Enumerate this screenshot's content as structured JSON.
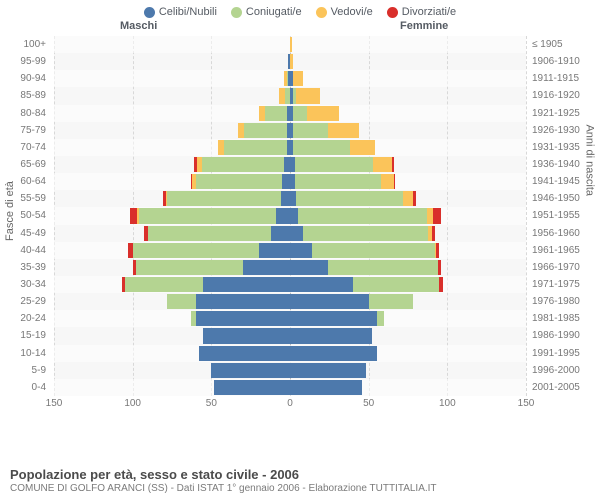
{
  "legend": [
    {
      "label": "Celibi/Nubili",
      "color": "#4d79ac"
    },
    {
      "label": "Coniugati/e",
      "color": "#b4d491"
    },
    {
      "label": "Vedovi/e",
      "color": "#fbc45a"
    },
    {
      "label": "Divorziati/e",
      "color": "#d92f2b"
    }
  ],
  "columns": {
    "left": "Maschi",
    "right": "Femmine"
  },
  "axes": {
    "left_title": "Fasce di età",
    "right_title": "Anni di nascita",
    "xmax": 150,
    "xticks": [
      150,
      100,
      50,
      0,
      50,
      100,
      150
    ],
    "grid_vals": [
      150,
      100,
      50,
      0,
      50,
      100,
      150
    ],
    "background": "#f7f7f7",
    "grid_color": "#d8d8d8"
  },
  "age_labels": [
    "100+",
    "95-99",
    "90-94",
    "85-89",
    "80-84",
    "75-79",
    "70-74",
    "65-69",
    "60-64",
    "55-59",
    "50-54",
    "45-49",
    "40-44",
    "35-39",
    "30-34",
    "25-29",
    "20-24",
    "15-19",
    "10-14",
    "5-9",
    "0-4"
  ],
  "year_labels": [
    "≤ 1905",
    "1906-1910",
    "1911-1915",
    "1916-1920",
    "1921-1925",
    "1926-1930",
    "1931-1935",
    "1936-1940",
    "1941-1945",
    "1946-1950",
    "1951-1955",
    "1956-1960",
    "1961-1965",
    "1966-1970",
    "1971-1975",
    "1976-1980",
    "1981-1985",
    "1986-1990",
    "1991-1995",
    "1996-2000",
    "2001-2005"
  ],
  "data": {
    "male": [
      {
        "c": 0,
        "m": 0,
        "w": 0,
        "d": 0
      },
      {
        "c": 1,
        "m": 0,
        "w": 0,
        "d": 0
      },
      {
        "c": 1,
        "m": 1,
        "w": 2,
        "d": 0
      },
      {
        "c": 0,
        "m": 3,
        "w": 4,
        "d": 0
      },
      {
        "c": 2,
        "m": 14,
        "w": 4,
        "d": 0
      },
      {
        "c": 2,
        "m": 27,
        "w": 4,
        "d": 0
      },
      {
        "c": 2,
        "m": 40,
        "w": 4,
        "d": 0
      },
      {
        "c": 4,
        "m": 52,
        "w": 3,
        "d": 2
      },
      {
        "c": 5,
        "m": 55,
        "w": 2,
        "d": 1
      },
      {
        "c": 6,
        "m": 72,
        "w": 1,
        "d": 2
      },
      {
        "c": 9,
        "m": 87,
        "w": 1,
        "d": 5
      },
      {
        "c": 12,
        "m": 78,
        "w": 0,
        "d": 3
      },
      {
        "c": 20,
        "m": 80,
        "w": 0,
        "d": 3
      },
      {
        "c": 30,
        "m": 68,
        "w": 0,
        "d": 2
      },
      {
        "c": 55,
        "m": 50,
        "w": 0,
        "d": 2
      },
      {
        "c": 60,
        "m": 18,
        "w": 0,
        "d": 0
      },
      {
        "c": 60,
        "m": 3,
        "w": 0,
        "d": 0
      },
      {
        "c": 55,
        "m": 0,
        "w": 0,
        "d": 0
      },
      {
        "c": 58,
        "m": 0,
        "w": 0,
        "d": 0
      },
      {
        "c": 50,
        "m": 0,
        "w": 0,
        "d": 0
      },
      {
        "c": 48,
        "m": 0,
        "w": 0,
        "d": 0
      }
    ],
    "female": [
      {
        "c": 0,
        "m": 0,
        "w": 1,
        "d": 0
      },
      {
        "c": 0,
        "m": 0,
        "w": 2,
        "d": 0
      },
      {
        "c": 2,
        "m": 0,
        "w": 6,
        "d": 0
      },
      {
        "c": 2,
        "m": 2,
        "w": 15,
        "d": 0
      },
      {
        "c": 2,
        "m": 9,
        "w": 20,
        "d": 0
      },
      {
        "c": 2,
        "m": 22,
        "w": 20,
        "d": 0
      },
      {
        "c": 2,
        "m": 36,
        "w": 16,
        "d": 0
      },
      {
        "c": 3,
        "m": 50,
        "w": 12,
        "d": 1
      },
      {
        "c": 3,
        "m": 55,
        "w": 8,
        "d": 1
      },
      {
        "c": 4,
        "m": 68,
        "w": 6,
        "d": 2
      },
      {
        "c": 5,
        "m": 82,
        "w": 4,
        "d": 5
      },
      {
        "c": 8,
        "m": 80,
        "w": 2,
        "d": 2
      },
      {
        "c": 14,
        "m": 78,
        "w": 1,
        "d": 2
      },
      {
        "c": 24,
        "m": 70,
        "w": 0,
        "d": 2
      },
      {
        "c": 40,
        "m": 55,
        "w": 0,
        "d": 2
      },
      {
        "c": 50,
        "m": 28,
        "w": 0,
        "d": 0
      },
      {
        "c": 55,
        "m": 5,
        "w": 0,
        "d": 0
      },
      {
        "c": 52,
        "m": 0,
        "w": 0,
        "d": 0
      },
      {
        "c": 55,
        "m": 0,
        "w": 0,
        "d": 0
      },
      {
        "c": 48,
        "m": 0,
        "w": 0,
        "d": 0
      },
      {
        "c": 46,
        "m": 0,
        "w": 0,
        "d": 0
      }
    ]
  },
  "colors": {
    "c": "#4d79ac",
    "m": "#b4d491",
    "w": "#fbc45a",
    "d": "#d92f2b"
  },
  "footer": {
    "title": "Popolazione per età, sesso e stato civile - 2006",
    "subtitle": "COMUNE DI GOLFO ARANCI (SS) - Dati ISTAT 1° gennaio 2006 - Elaborazione TUTTITALIA.IT"
  }
}
